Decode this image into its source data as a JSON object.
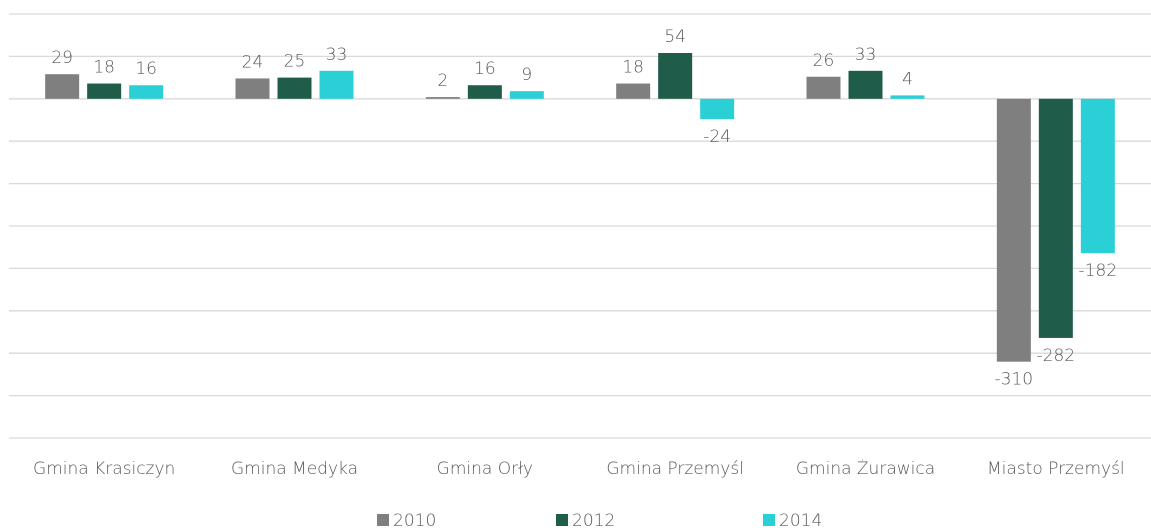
{
  "chart_data": {
    "type": "bar",
    "categories": [
      "Gmina Krasiczyn",
      "Gmina Medyka",
      "Gmina Orły",
      "Gmina Przemyśl",
      "Gmina Żurawica",
      "Miasto Przemyśl"
    ],
    "series": [
      {
        "name": "2010",
        "color": "#7f7f7f",
        "values": [
          29,
          24,
          2,
          18,
          26,
          -310
        ]
      },
      {
        "name": "2012",
        "color": "#1f5c4a",
        "values": [
          18,
          25,
          16,
          54,
          33,
          -282
        ]
      },
      {
        "name": "2014",
        "color": "#2bcfd6",
        "values": [
          16,
          33,
          9,
          -24,
          4,
          -182
        ]
      }
    ],
    "ylim": [
      -400,
      100
    ],
    "yticks": [
      -400,
      -350,
      -300,
      -250,
      -200,
      -150,
      -100,
      -50,
      0,
      50,
      100
    ],
    "grid": true,
    "legend": "bottom"
  }
}
